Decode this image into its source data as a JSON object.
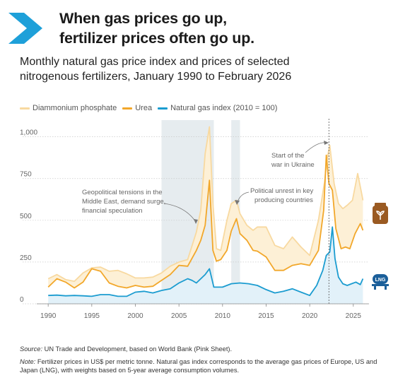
{
  "header": {
    "title_line1": "When gas prices go up,",
    "title_line2": "fertilizer prices often go up.",
    "subtitle_line1": "Monthly natural gas price index and prices of selected",
    "subtitle_line2": "nitrogenous fertilizers, January 1990 to February 2026",
    "accent_color": "#1ea0d9"
  },
  "legend": [
    {
      "label": "Diammonium phosphate",
      "color": "#f8d9a0"
    },
    {
      "label": "Urea",
      "color": "#f2a72a"
    },
    {
      "label": "Natural gas index (2010 = 100)",
      "color": "#1b9cd0"
    }
  ],
  "annotations": {
    "geo_line1": "Geopolitical tensions in the",
    "geo_line2": "Middle East, demand surge,",
    "geo_line3": "financial speculation",
    "pol_line1": "Political unrest in key",
    "pol_line2": "producing countries",
    "ukr_line1": "Start of the",
    "ukr_line2": "war in Ukraine"
  },
  "icons": [
    "fertilizer-bag-icon",
    "lng-tanker-icon"
  ],
  "footer": {
    "source_label": "Source:",
    "source_text": " UN Trade and Development, based on World Bank (Pink Sheet).",
    "note_label": "Note:",
    "note_text": " Fertilizer prices in US$ per metric tonne. Natural gas index corresponds to the average gas prices of Europe, US and Japan (LNG), with weights based on 5-year average consumption volumes."
  },
  "chart_data": {
    "type": "line",
    "xlabel": "",
    "ylabel": "",
    "xlim": [
      1989.5,
      2026.8
    ],
    "ylim": [
      0,
      1100
    ],
    "x_ticks": [
      "1990",
      "1995",
      "2000",
      "2005",
      "2010",
      "2015",
      "2020",
      "2025"
    ],
    "y_ticks": [
      "0",
      "250",
      "500",
      "750",
      "1,000"
    ],
    "grid": "horizontal-dotted",
    "shaded_periods": [
      [
        2003.0,
        2009.0
      ],
      [
        2011.0,
        2012.0
      ]
    ],
    "event_line_x": 2022.2,
    "series": [
      {
        "name": "Diammonium phosphate",
        "points": [
          [
            1990,
            150
          ],
          [
            1991,
            175
          ],
          [
            1992,
            145
          ],
          [
            1993,
            135
          ],
          [
            1994,
            185
          ],
          [
            1995,
            215
          ],
          [
            1996,
            220
          ],
          [
            1997,
            195
          ],
          [
            1998,
            200
          ],
          [
            1999,
            180
          ],
          [
            2000,
            155
          ],
          [
            2001,
            155
          ],
          [
            2002,
            160
          ],
          [
            2003,
            185
          ],
          [
            2004,
            225
          ],
          [
            2005,
            250
          ],
          [
            2006,
            265
          ],
          [
            2007,
            430
          ],
          [
            2007.5,
            560
          ],
          [
            2008.0,
            900
          ],
          [
            2008.5,
            1060
          ],
          [
            2008.9,
            600
          ],
          [
            2009.3,
            330
          ],
          [
            2009.8,
            320
          ],
          [
            2010.5,
            500
          ],
          [
            2011,
            600
          ],
          [
            2011.6,
            620
          ],
          [
            2012,
            540
          ],
          [
            2012.8,
            470
          ],
          [
            2013.5,
            440
          ],
          [
            2014,
            460
          ],
          [
            2015,
            460
          ],
          [
            2016,
            350
          ],
          [
            2017,
            330
          ],
          [
            2018,
            400
          ],
          [
            2019,
            340
          ],
          [
            2020,
            290
          ],
          [
            2021,
            500
          ],
          [
            2021.7,
            730
          ],
          [
            2022.0,
            870
          ],
          [
            2022.3,
            950
          ],
          [
            2022.8,
            720
          ],
          [
            2023.3,
            600
          ],
          [
            2023.8,
            570
          ],
          [
            2024.3,
            590
          ],
          [
            2024.9,
            620
          ],
          [
            2025.5,
            780
          ],
          [
            2026.0,
            650
          ],
          [
            2026.1,
            620
          ]
        ]
      },
      {
        "name": "Urea",
        "points": [
          [
            1990,
            100
          ],
          [
            1991,
            150
          ],
          [
            1992,
            130
          ],
          [
            1993,
            95
          ],
          [
            1994,
            130
          ],
          [
            1995,
            210
          ],
          [
            1996,
            195
          ],
          [
            1997,
            125
          ],
          [
            1998,
            105
          ],
          [
            1999,
            95
          ],
          [
            2000,
            110
          ],
          [
            2001,
            100
          ],
          [
            2002,
            105
          ],
          [
            2003,
            140
          ],
          [
            2004,
            175
          ],
          [
            2005,
            230
          ],
          [
            2006,
            225
          ],
          [
            2007,
            320
          ],
          [
            2007.5,
            380
          ],
          [
            2008.0,
            470
          ],
          [
            2008.5,
            740
          ],
          [
            2008.9,
            320
          ],
          [
            2009.3,
            255
          ],
          [
            2009.8,
            265
          ],
          [
            2010.5,
            320
          ],
          [
            2011,
            435
          ],
          [
            2011.6,
            510
          ],
          [
            2012,
            420
          ],
          [
            2012.8,
            380
          ],
          [
            2013.5,
            320
          ],
          [
            2014,
            315
          ],
          [
            2015,
            280
          ],
          [
            2016,
            200
          ],
          [
            2017,
            200
          ],
          [
            2018,
            230
          ],
          [
            2019,
            240
          ],
          [
            2020,
            230
          ],
          [
            2021,
            320
          ],
          [
            2021.6,
            560
          ],
          [
            2021.9,
            890
          ],
          [
            2022.2,
            720
          ],
          [
            2022.6,
            680
          ],
          [
            2023.0,
            450
          ],
          [
            2023.6,
            330
          ],
          [
            2024.1,
            340
          ],
          [
            2024.6,
            330
          ],
          [
            2025.2,
            420
          ],
          [
            2025.8,
            480
          ],
          [
            2026.1,
            440
          ]
        ]
      },
      {
        "name": "Natural gas index (2010 = 100)",
        "points": [
          [
            1990,
            50
          ],
          [
            1991,
            52
          ],
          [
            1992,
            48
          ],
          [
            1993,
            50
          ],
          [
            1994,
            48
          ],
          [
            1995,
            45
          ],
          [
            1996,
            55
          ],
          [
            1997,
            55
          ],
          [
            1998,
            45
          ],
          [
            1999,
            45
          ],
          [
            2000,
            70
          ],
          [
            2001,
            75
          ],
          [
            2002,
            65
          ],
          [
            2003,
            80
          ],
          [
            2004,
            90
          ],
          [
            2005,
            125
          ],
          [
            2006,
            150
          ],
          [
            2006.5,
            140
          ],
          [
            2007,
            125
          ],
          [
            2008,
            175
          ],
          [
            2008.5,
            210
          ],
          [
            2009,
            100
          ],
          [
            2010,
            100
          ],
          [
            2011,
            120
          ],
          [
            2012,
            125
          ],
          [
            2013,
            120
          ],
          [
            2014,
            110
          ],
          [
            2015,
            85
          ],
          [
            2016,
            65
          ],
          [
            2017,
            75
          ],
          [
            2018,
            90
          ],
          [
            2019,
            70
          ],
          [
            2020,
            50
          ],
          [
            2020.8,
            110
          ],
          [
            2021.5,
            200
          ],
          [
            2021.9,
            290
          ],
          [
            2022.3,
            310
          ],
          [
            2022.6,
            460
          ],
          [
            2022.9,
            270
          ],
          [
            2023.3,
            160
          ],
          [
            2023.8,
            120
          ],
          [
            2024.3,
            110
          ],
          [
            2024.8,
            120
          ],
          [
            2025.3,
            130
          ],
          [
            2025.8,
            115
          ],
          [
            2026.1,
            150
          ]
        ]
      }
    ]
  }
}
